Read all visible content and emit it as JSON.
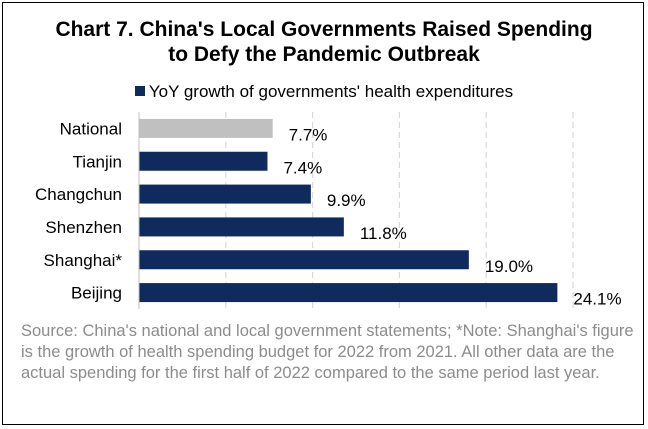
{
  "chart_data": {
    "type": "bar",
    "orientation": "horizontal",
    "title_line1": "Chart 7. China's Local Governments Raised Spending",
    "title_line2": "to Defy the Pandemic Outbreak",
    "categories": [
      "National",
      "Tianjin",
      "Changchun",
      "Shenzhen",
      "Shanghai*",
      "Beijing"
    ],
    "series": [
      {
        "name": "YoY growth of governments' health expenditures",
        "values": [
          7.7,
          7.4,
          9.9,
          11.8,
          19.0,
          24.1
        ],
        "labels": [
          "7.7%",
          "7.4%",
          "9.9%",
          "11.8%",
          "19.0%",
          "24.1%"
        ]
      }
    ],
    "bar_colors": [
      "#c0c0c0",
      "#0f2a5c",
      "#0f2a5c",
      "#0f2a5c",
      "#0f2a5c",
      "#0f2a5c"
    ],
    "xlim": [
      0,
      25
    ],
    "grid": "vertical dashed",
    "legend_position": "top"
  },
  "source_note": "Source: China's national and local government statements; *Note: Shanghai's figure is the growth of health spending budget for 2022 from 2021. All other data are the actual spending for the first half of 2022 compared to the same period last year."
}
